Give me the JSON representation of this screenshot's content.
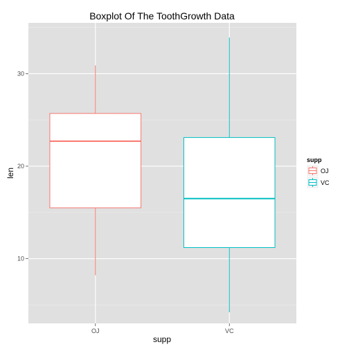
{
  "chart_data": {
    "type": "boxplot",
    "title": "Boxplot Of The ToothGrowth Data",
    "xlabel": "supp",
    "ylabel": "len",
    "ylim": [
      3,
      35.5
    ],
    "y_ticks": [
      10,
      20,
      30
    ],
    "grid": true,
    "panel_background": "#e0e0e0",
    "legend": {
      "title": "supp",
      "placement": "right",
      "entries": [
        "OJ",
        "VC"
      ]
    },
    "series": [
      {
        "name": "OJ",
        "color": "#f8766d",
        "min": 8.2,
        "q1": 15.5,
        "median": 22.7,
        "q3": 25.7,
        "max": 30.9
      },
      {
        "name": "VC",
        "color": "#00bfc4",
        "min": 4.2,
        "q1": 11.2,
        "median": 16.5,
        "q3": 23.1,
        "max": 33.9
      }
    ],
    "categories": [
      "OJ",
      "VC"
    ]
  }
}
